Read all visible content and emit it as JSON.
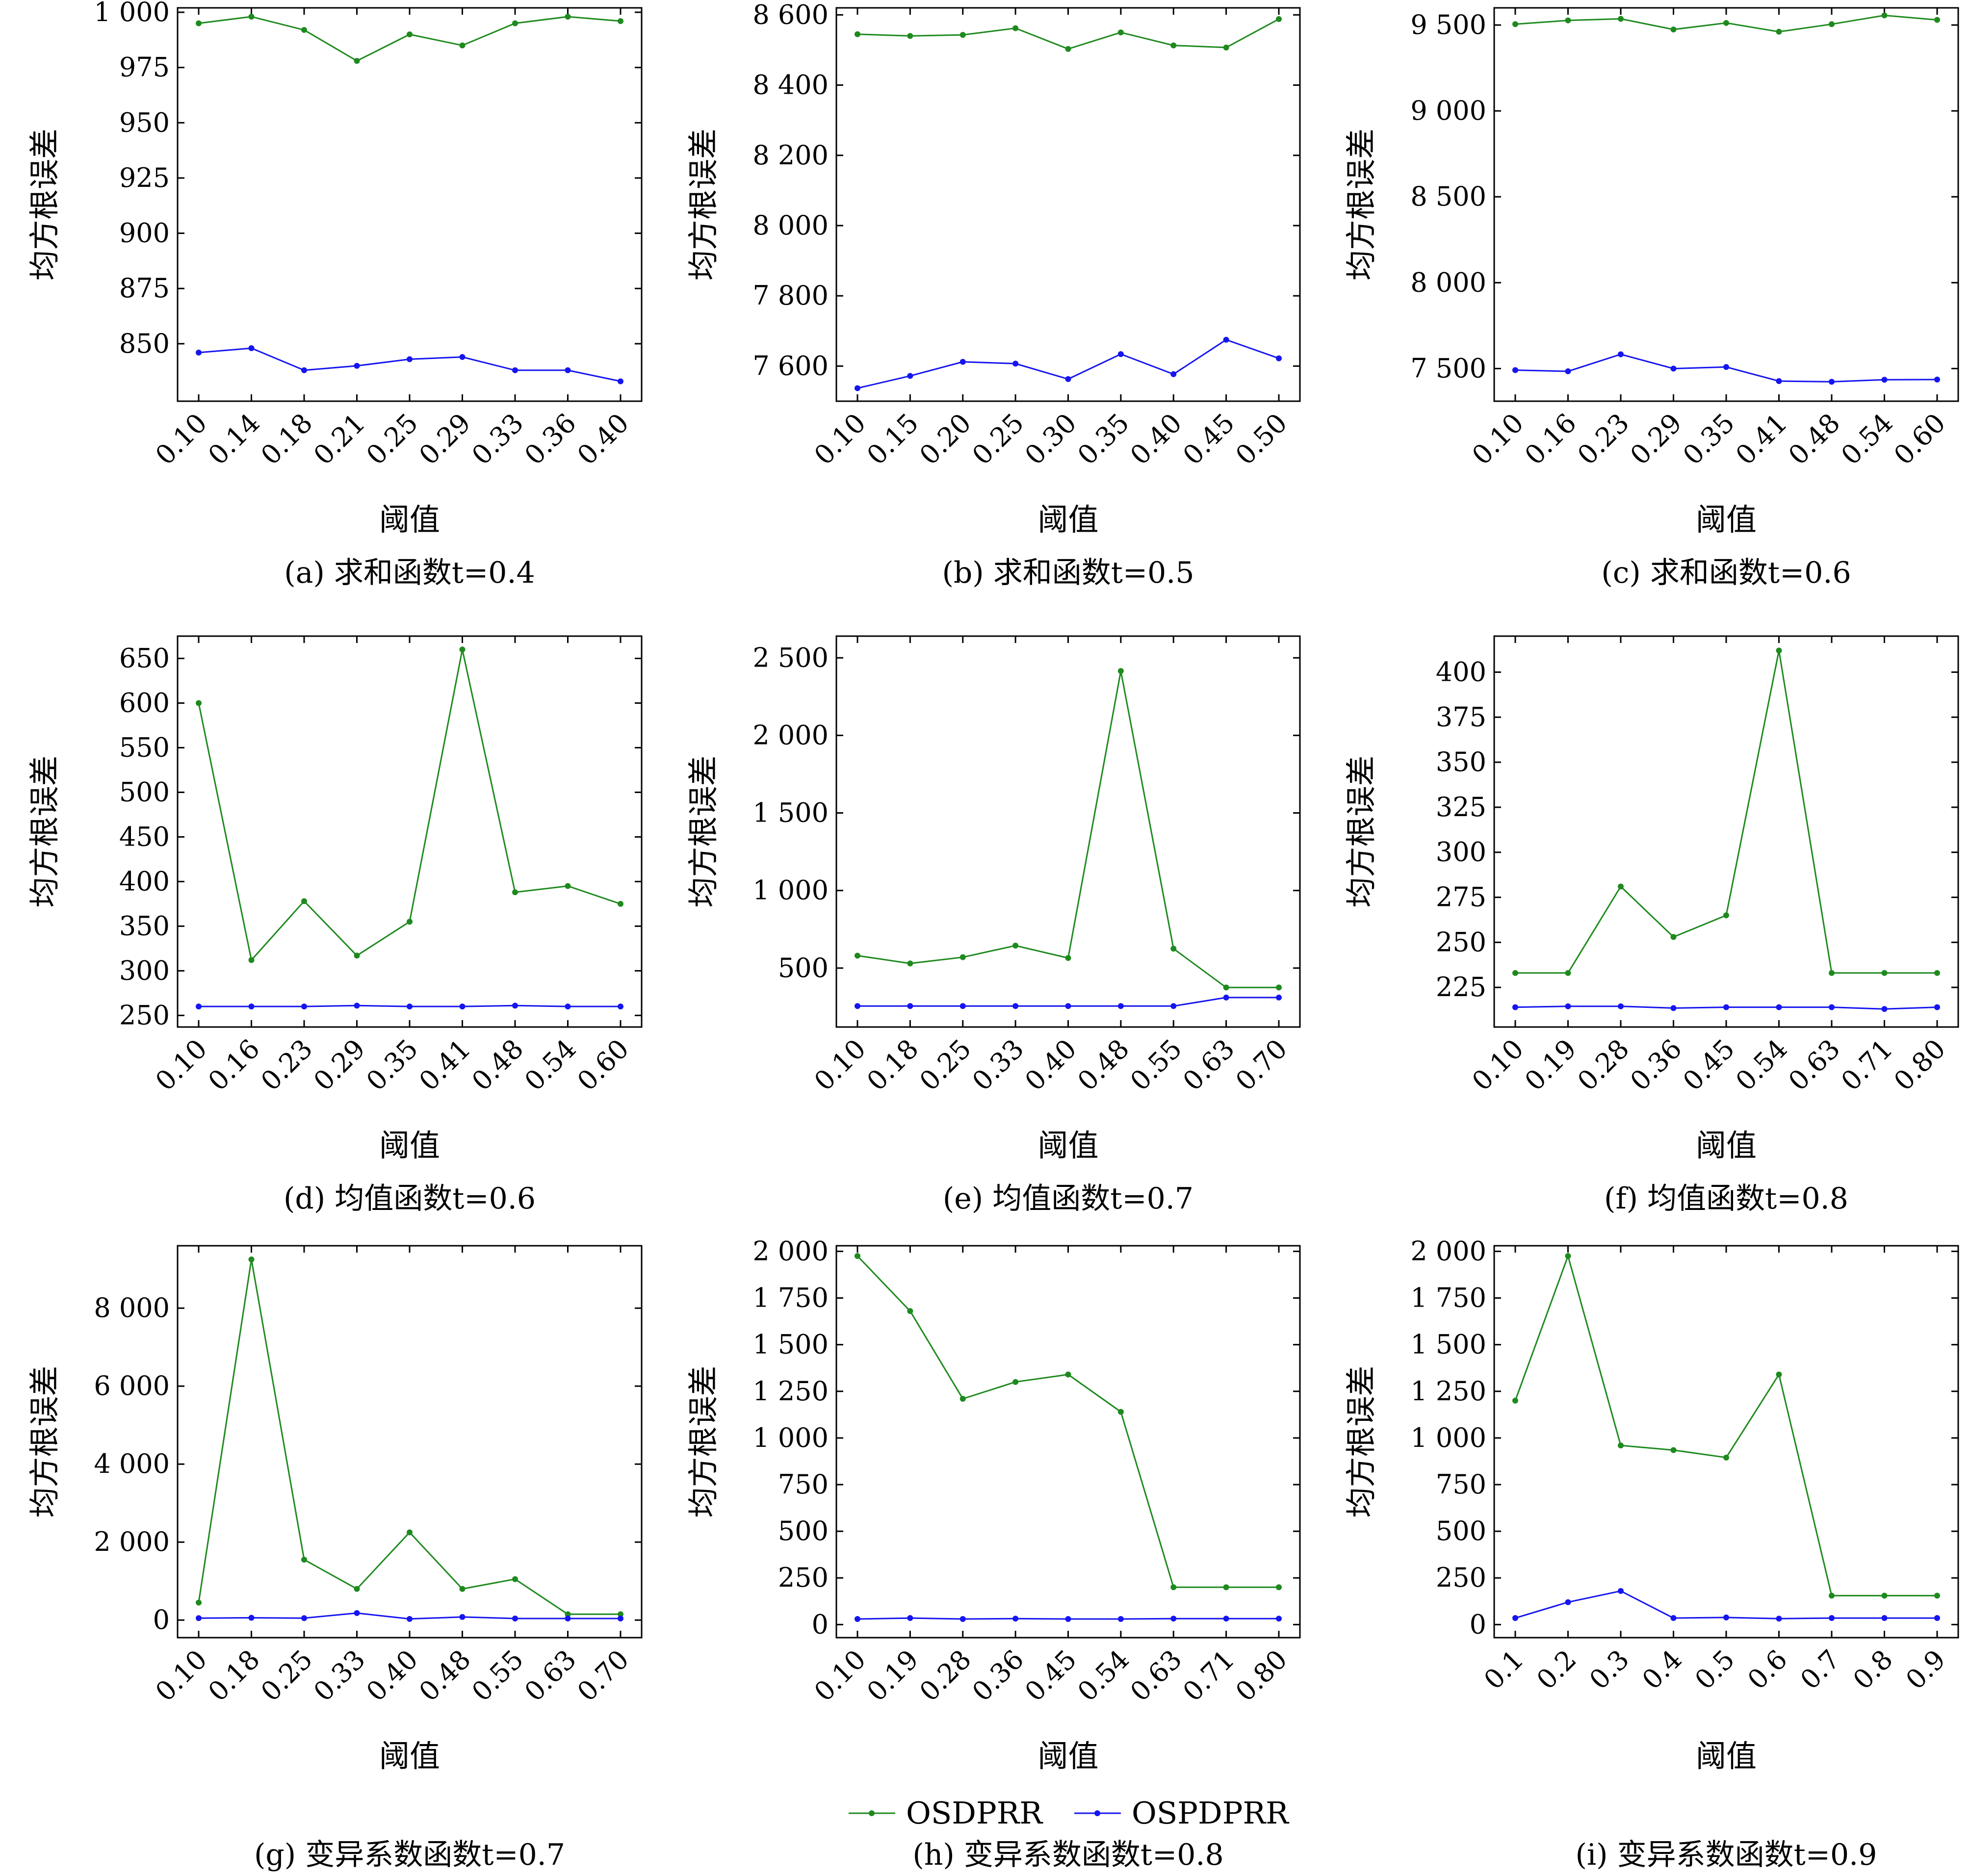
{
  "legend": {
    "items": [
      {
        "label": "OSDPRR",
        "color": "#1e8a1e"
      },
      {
        "label": "OSPDPRR",
        "color": "#1515f0"
      }
    ]
  },
  "chart_data": [
    {
      "type": "line",
      "caption": "(a) 求和函数t=0.4",
      "xlabel": "阈值",
      "ylabel": "均方根误差",
      "categories": [
        "0.10",
        "0.14",
        "0.18",
        "0.21",
        "0.25",
        "0.29",
        "0.33",
        "0.36",
        "0.40"
      ],
      "ylim": [
        824,
        1002
      ],
      "yticks": [
        850,
        875,
        900,
        925,
        950,
        975,
        1000
      ],
      "yticklabels": [
        "850",
        "875",
        "900",
        "925",
        "950",
        "975",
        "1 000"
      ],
      "series": [
        {
          "name": "OSDPRR",
          "color": "#1e8a1e",
          "values": [
            995,
            998,
            992,
            978,
            990,
            985,
            995,
            998,
            996
          ]
        },
        {
          "name": "OSPDPRR",
          "color": "#1515f0",
          "values": [
            846,
            848,
            838,
            840,
            843,
            844,
            838,
            838,
            833
          ]
        }
      ]
    },
    {
      "type": "line",
      "caption": "(b) 求和函数t=0.5",
      "xlabel": "阈值",
      "ylabel": "均方根误差",
      "categories": [
        "0.10",
        "0.15",
        "0.20",
        "0.25",
        "0.30",
        "0.35",
        "0.40",
        "0.45",
        "0.50"
      ],
      "ylim": [
        7500,
        8620
      ],
      "yticks": [
        7600,
        7800,
        8000,
        8200,
        8400,
        8600
      ],
      "yticklabels": [
        "7 600",
        "7 800",
        "8 000",
        "8 200",
        "8 400",
        "8 600"
      ],
      "series": [
        {
          "name": "OSDPRR",
          "color": "#1e8a1e",
          "values": [
            8545,
            8540,
            8543,
            8562,
            8503,
            8550,
            8513,
            8507,
            8588
          ]
        },
        {
          "name": "OSPDPRR",
          "color": "#1515f0",
          "values": [
            7537,
            7572,
            7612,
            7607,
            7563,
            7634,
            7577,
            7675,
            7622
          ]
        }
      ]
    },
    {
      "type": "line",
      "caption": "(c) 求和函数t=0.6",
      "xlabel": "阈值",
      "ylabel": "均方根误差",
      "categories": [
        "0.10",
        "0.16",
        "0.23",
        "0.29",
        "0.35",
        "0.41",
        "0.48",
        "0.54",
        "0.60"
      ],
      "ylim": [
        7310,
        9600
      ],
      "yticks": [
        7500,
        8000,
        8500,
        9000,
        9500
      ],
      "yticklabels": [
        "7 500",
        "8 000",
        "8 500",
        "9 000",
        "9 500"
      ],
      "series": [
        {
          "name": "OSDPRR",
          "color": "#1e8a1e",
          "values": [
            9505,
            9527,
            9536,
            9474,
            9512,
            9461,
            9505,
            9556,
            9530
          ]
        },
        {
          "name": "OSPDPRR",
          "color": "#1515f0",
          "values": [
            7491,
            7484,
            7583,
            7500,
            7509,
            7427,
            7423,
            7435,
            7436
          ]
        }
      ]
    },
    {
      "type": "line",
      "caption": "(d) 均值函数t=0.6",
      "xlabel": "阈值",
      "ylabel": "均方根误差",
      "categories": [
        "0.10",
        "0.16",
        "0.23",
        "0.29",
        "0.35",
        "0.41",
        "0.48",
        "0.54",
        "0.60"
      ],
      "ylim": [
        237,
        675
      ],
      "yticks": [
        250,
        300,
        350,
        400,
        450,
        500,
        550,
        600,
        650
      ],
      "yticklabels": [
        "250",
        "300",
        "350",
        "400",
        "450",
        "500",
        "550",
        "600",
        "650"
      ],
      "series": [
        {
          "name": "OSDPRR",
          "color": "#1e8a1e",
          "values": [
            600,
            312,
            378,
            317,
            355,
            660,
            388,
            395,
            375
          ]
        },
        {
          "name": "OSPDPRR",
          "color": "#1515f0",
          "values": [
            260,
            260,
            260,
            261,
            260,
            260,
            261,
            260,
            260
          ]
        }
      ]
    },
    {
      "type": "line",
      "caption": "(e) 均值函数t=0.7",
      "xlabel": "阈值",
      "ylabel": "均方根误差",
      "categories": [
        "0.10",
        "0.18",
        "0.25",
        "0.33",
        "0.40",
        "0.48",
        "0.55",
        "0.63",
        "0.70"
      ],
      "ylim": [
        120,
        2640
      ],
      "yticks": [
        500,
        1000,
        1500,
        2000,
        2500
      ],
      "yticklabels": [
        "500",
        "1 000",
        "1 500",
        "2 000",
        "2 500"
      ],
      "series": [
        {
          "name": "OSDPRR",
          "color": "#1e8a1e",
          "values": [
            580,
            530,
            570,
            645,
            565,
            2415,
            625,
            375,
            375
          ]
        },
        {
          "name": "OSPDPRR",
          "color": "#1515f0",
          "values": [
            255,
            255,
            255,
            255,
            255,
            255,
            255,
            310,
            310
          ]
        }
      ]
    },
    {
      "type": "line",
      "caption": "(f) 均值函数t=0.8",
      "xlabel": "阈值",
      "ylabel": "均方根误差",
      "categories": [
        "0.10",
        "0.19",
        "0.28",
        "0.36",
        "0.45",
        "0.54",
        "0.63",
        "0.71",
        "0.80"
      ],
      "ylim": [
        203,
        420
      ],
      "yticks": [
        225,
        250,
        275,
        300,
        325,
        350,
        375,
        400
      ],
      "yticklabels": [
        "225",
        "250",
        "275",
        "300",
        "325",
        "350",
        "375",
        "400"
      ],
      "series": [
        {
          "name": "OSDPRR",
          "color": "#1e8a1e",
          "values": [
            233,
            233,
            281,
            253,
            265,
            412,
            233,
            233,
            233
          ]
        },
        {
          "name": "OSPDPRR",
          "color": "#1515f0",
          "values": [
            214,
            214.5,
            214.5,
            213.5,
            214,
            214,
            214,
            213,
            214
          ]
        }
      ]
    },
    {
      "type": "line",
      "caption": "(g) 变异系数函数t=0.7",
      "xlabel": "阈值",
      "ylabel": "均方根误差",
      "categories": [
        "0.10",
        "0.18",
        "0.25",
        "0.33",
        "0.40",
        "0.48",
        "0.55",
        "0.63",
        "0.70"
      ],
      "ylim": [
        -450,
        9600
      ],
      "yticks": [
        0,
        2000,
        4000,
        6000,
        8000
      ],
      "yticklabels": [
        "0",
        "2 000",
        "4 000",
        "6 000",
        "8 000"
      ],
      "series": [
        {
          "name": "OSDPRR",
          "color": "#1e8a1e",
          "values": [
            450,
            9250,
            1550,
            800,
            2250,
            800,
            1050,
            150,
            150
          ]
        },
        {
          "name": "OSPDPRR",
          "color": "#1515f0",
          "values": [
            50,
            60,
            50,
            180,
            30,
            80,
            40,
            40,
            40
          ]
        }
      ]
    },
    {
      "type": "line",
      "caption": "(h) 变异系数函数t=0.8",
      "xlabel": "阈值",
      "ylabel": "均方根误差",
      "categories": [
        "0.10",
        "0.19",
        "0.28",
        "0.36",
        "0.45",
        "0.54",
        "0.63",
        "0.71",
        "0.80"
      ],
      "ylim": [
        -70,
        2030
      ],
      "yticks": [
        0,
        250,
        500,
        750,
        1000,
        1250,
        1500,
        1750,
        2000
      ],
      "yticklabels": [
        "0",
        "250",
        "500",
        "750",
        "1 000",
        "1 250",
        "1 500",
        "1 750",
        "2 000"
      ],
      "series": [
        {
          "name": "OSDPRR",
          "color": "#1e8a1e",
          "values": [
            1975,
            1680,
            1210,
            1300,
            1340,
            1140,
            200,
            200,
            200
          ]
        },
        {
          "name": "OSPDPRR",
          "color": "#1515f0",
          "values": [
            30,
            35,
            30,
            32,
            30,
            30,
            32,
            32,
            32
          ]
        }
      ]
    },
    {
      "type": "line",
      "caption": "(i) 变异系数函数t=0.9",
      "xlabel": "阈值",
      "ylabel": "均方根误差",
      "categories": [
        "0.1",
        "0.2",
        "0.3",
        "0.4",
        "0.5",
        "0.6",
        "0.7",
        "0.8",
        "0.9"
      ],
      "ylim": [
        -70,
        2030
      ],
      "yticks": [
        0,
        250,
        500,
        750,
        1000,
        1250,
        1500,
        1750,
        2000
      ],
      "yticklabels": [
        "0",
        "250",
        "500",
        "750",
        "1 000",
        "1 250",
        "1 500",
        "1 750",
        "2 000"
      ],
      "series": [
        {
          "name": "OSDPRR",
          "color": "#1e8a1e",
          "values": [
            1200,
            1975,
            960,
            935,
            895,
            1340,
            155,
            155,
            155
          ]
        },
        {
          "name": "OSPDPRR",
          "color": "#1515f0",
          "values": [
            35,
            120,
            180,
            35,
            38,
            32,
            35,
            35,
            35
          ]
        }
      ]
    }
  ]
}
